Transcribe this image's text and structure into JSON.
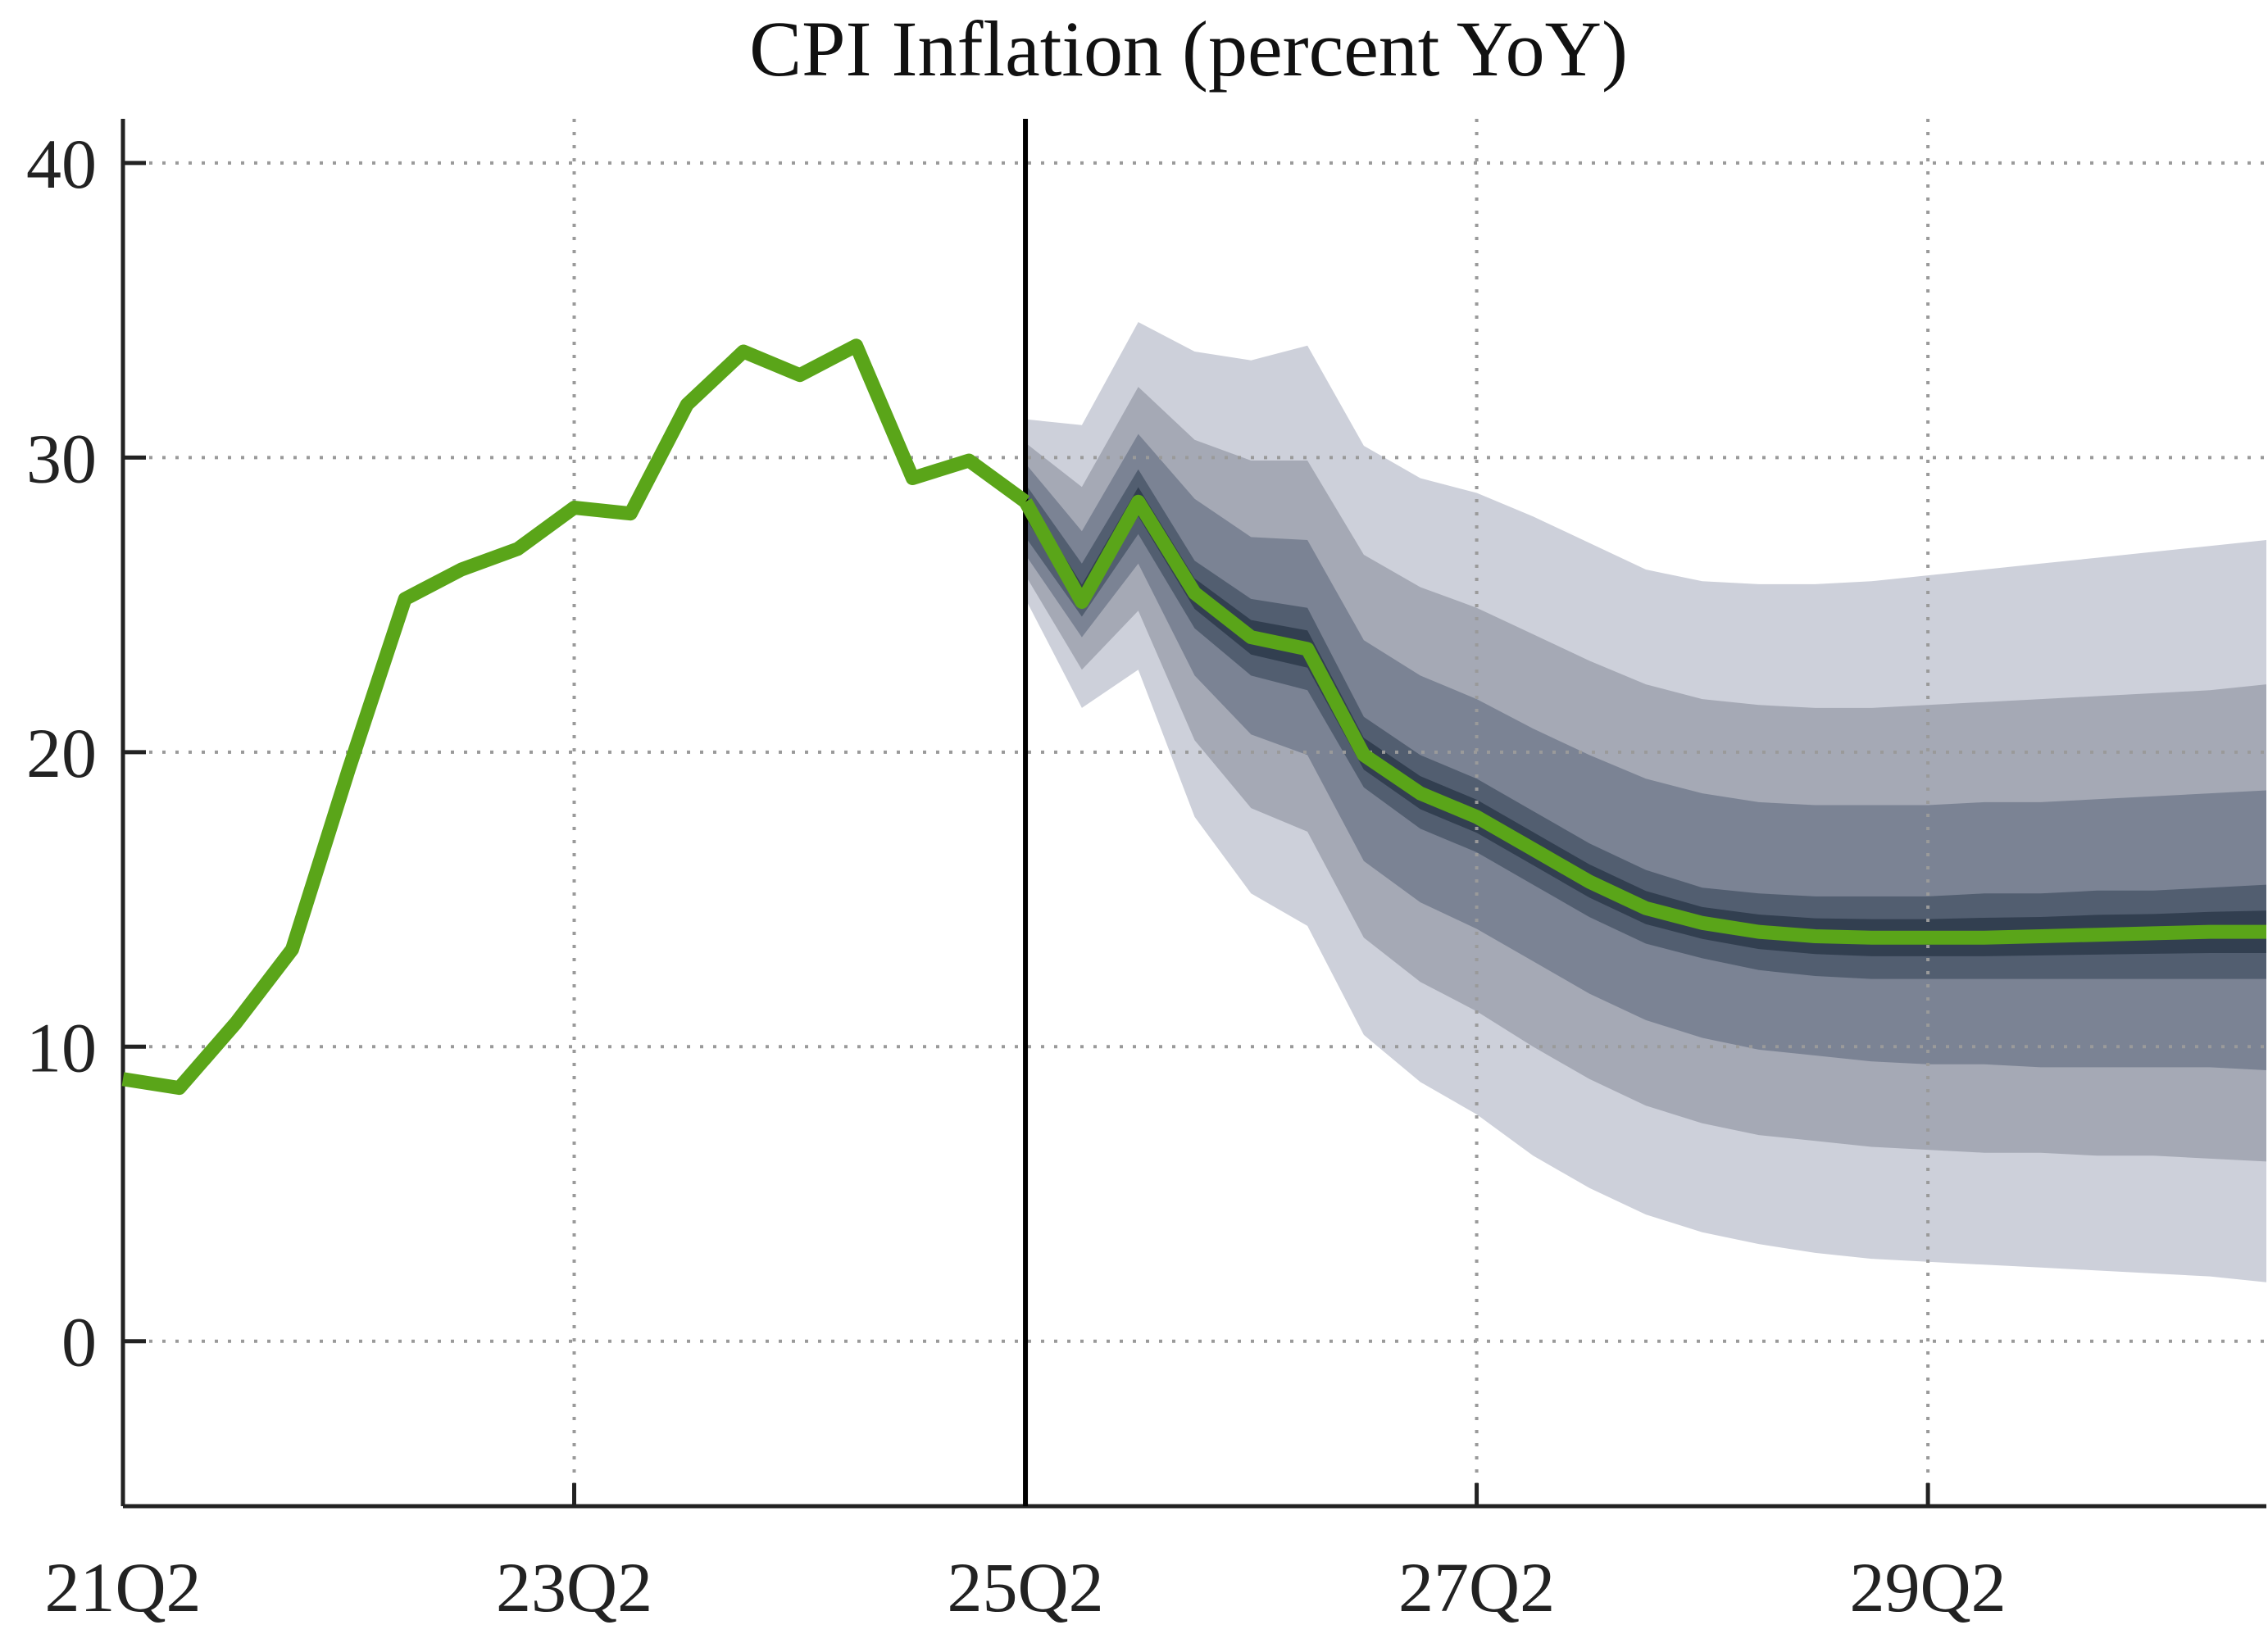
{
  "chart_data": {
    "type": "area",
    "title": "CPI Inflation (percent YoY)",
    "xlabel": "",
    "ylabel": "",
    "ylim": [
      -5.6,
      41.5
    ],
    "x_start_quarter": "21Q2",
    "x_end_quarter": "30Q4",
    "x_ticks": [
      "21Q2",
      "23Q2",
      "25Q2",
      "27Q2",
      "29Q2"
    ],
    "y_ticks": [
      0,
      10,
      20,
      30,
      40
    ],
    "y_tick_labels": [
      "0",
      "10",
      "20",
      "30",
      "40"
    ],
    "grid": true,
    "forecast_start": "25Q2",
    "line_color": "#5aa519",
    "band_colors": [
      "#cdd0da",
      "#a5a9b5",
      "#7b8394",
      "#525e70",
      "#323f50"
    ],
    "actual": {
      "x": [
        "21Q2",
        "21Q3",
        "21Q4",
        "22Q1",
        "22Q2",
        "22Q3",
        "22Q4",
        "23Q1",
        "23Q2",
        "23Q3",
        "23Q4",
        "24Q1",
        "24Q2",
        "24Q3",
        "24Q4",
        "25Q1",
        "25Q2"
      ],
      "values": [
        8.9,
        8.6,
        10.8,
        13.3,
        19.4,
        25.2,
        26.2,
        26.9,
        28.3,
        28.1,
        31.8,
        33.6,
        32.8,
        33.8,
        29.3,
        29.9,
        28.5
      ]
    },
    "forecast": {
      "x": [
        "25Q2",
        "25Q3",
        "25Q4",
        "26Q1",
        "26Q2",
        "26Q3",
        "26Q4",
        "27Q1",
        "27Q2",
        "27Q3",
        "27Q4",
        "28Q1",
        "28Q2",
        "28Q3",
        "28Q4",
        "29Q1",
        "29Q2",
        "29Q3",
        "29Q4",
        "30Q1",
        "30Q2",
        "30Q3",
        "30Q4"
      ],
      "median": [
        28.5,
        25.1,
        28.5,
        25.4,
        23.9,
        23.5,
        19.9,
        18.6,
        17.8,
        16.7,
        15.6,
        14.7,
        14.2,
        13.9,
        13.75,
        13.7,
        13.7,
        13.7,
        13.75,
        13.8,
        13.85,
        13.9,
        13.9
      ],
      "bands": [
        {
          "lower": [
            25.2,
            21.5,
            22.8,
            17.8,
            15.2,
            14.1,
            10.4,
            8.8,
            7.7,
            6.3,
            5.2,
            4.3,
            3.7,
            3.3,
            3.0,
            2.8,
            2.7,
            2.6,
            2.5,
            2.4,
            2.3,
            2.2,
            2.0
          ],
          "upper": [
            31.3,
            31.1,
            34.6,
            33.6,
            33.3,
            33.8,
            30.4,
            29.3,
            28.8,
            28.0,
            27.1,
            26.2,
            25.8,
            25.7,
            25.7,
            25.8,
            26.0,
            26.2,
            26.4,
            26.6,
            26.8,
            27.0,
            27.2
          ]
        },
        {
          "lower": [
            26.0,
            22.8,
            24.8,
            20.4,
            18.1,
            17.3,
            13.7,
            12.2,
            11.2,
            10.0,
            8.9,
            8.0,
            7.4,
            7.0,
            6.8,
            6.6,
            6.5,
            6.4,
            6.4,
            6.3,
            6.3,
            6.2,
            6.1
          ],
          "upper": [
            30.5,
            29.0,
            32.4,
            30.6,
            29.9,
            29.9,
            26.7,
            25.6,
            24.9,
            24.0,
            23.1,
            22.3,
            21.8,
            21.6,
            21.5,
            21.5,
            21.6,
            21.7,
            21.8,
            21.9,
            22.0,
            22.1,
            22.3
          ]
        },
        {
          "lower": [
            26.7,
            23.9,
            26.4,
            22.6,
            20.6,
            19.9,
            16.3,
            14.9,
            14.0,
            12.9,
            11.8,
            10.9,
            10.3,
            9.9,
            9.7,
            9.5,
            9.4,
            9.4,
            9.3,
            9.3,
            9.3,
            9.3,
            9.2
          ],
          "upper": [
            29.8,
            27.5,
            30.8,
            28.6,
            27.3,
            27.2,
            23.8,
            22.6,
            21.8,
            20.8,
            19.9,
            19.1,
            18.6,
            18.3,
            18.2,
            18.2,
            18.2,
            18.3,
            18.3,
            18.4,
            18.5,
            18.6,
            18.7
          ]
        },
        {
          "lower": [
            27.3,
            24.6,
            27.4,
            24.2,
            22.6,
            22.1,
            18.8,
            17.4,
            16.6,
            15.5,
            14.4,
            13.5,
            13.0,
            12.6,
            12.4,
            12.3,
            12.3,
            12.3,
            12.3,
            12.3,
            12.3,
            12.3,
            12.3
          ],
          "upper": [
            29.1,
            26.4,
            29.6,
            26.5,
            25.2,
            24.9,
            21.2,
            19.9,
            19.1,
            18.0,
            16.9,
            16.0,
            15.4,
            15.2,
            15.1,
            15.1,
            15.1,
            15.2,
            15.2,
            15.3,
            15.3,
            15.4,
            15.5
          ]
        }
      ]
    }
  }
}
